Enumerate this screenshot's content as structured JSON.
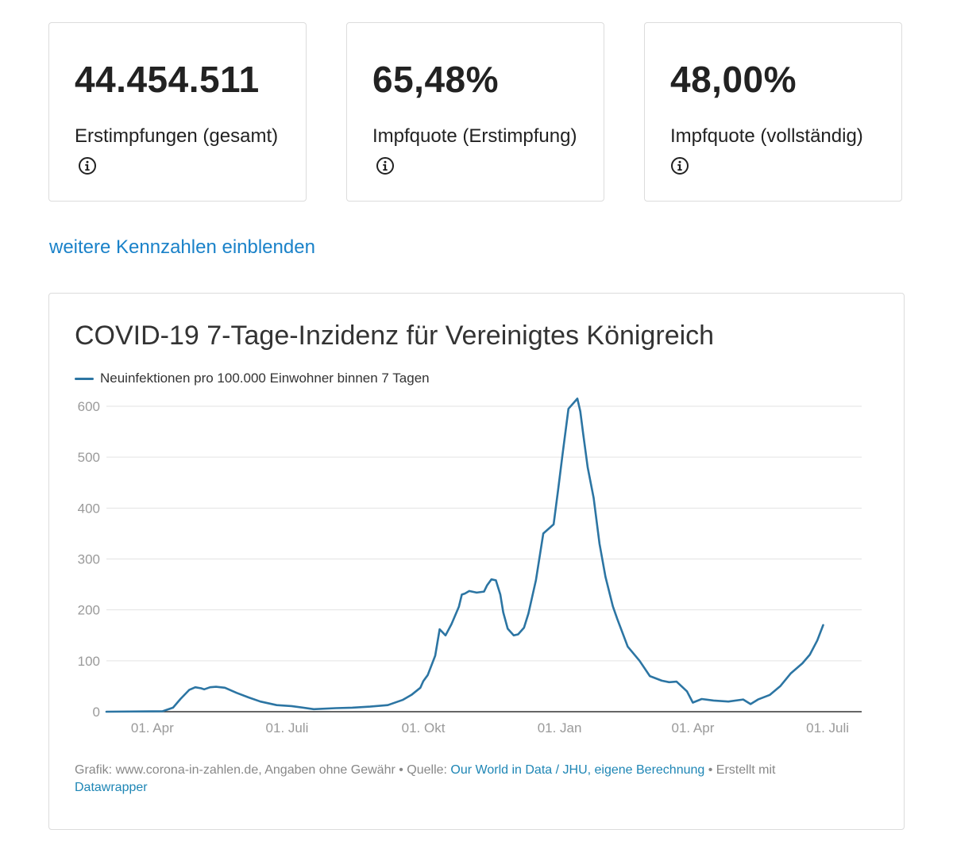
{
  "cards": [
    {
      "value": "44.454.511",
      "label": "Erstimpfungen (gesamt)"
    },
    {
      "value": "65,48%",
      "label": "Impfquote (Erstimpfung)"
    },
    {
      "value": "48,00%",
      "label": "Impfquote (vollständig)"
    }
  ],
  "more_link": "weitere Kennzahlen einblenden",
  "footer": {
    "prefix": "Grafik: www.corona-in-zahlen.de, Angaben ohne Gewähr • Quelle: ",
    "source_link": "Our World in Data / JHU, eigene Berechnung",
    "middle": " • Erstellt mit ",
    "tool_link": "Datawrapper"
  },
  "colors": {
    "line": "#2c75a3",
    "link": "#1a82c9",
    "grid": "#e3e3e3"
  },
  "chart_data": {
    "type": "line",
    "title": "COVID-19 7-Tage-Inzidenz für Vereinigtes Königreich",
    "legend": "Neuinfektionen pro 100.000 Einwohner binnen 7 Tagen",
    "xlabel": "",
    "ylabel": "",
    "ylim": [
      0,
      600
    ],
    "y_ticks": [
      0,
      100,
      200,
      300,
      400,
      500,
      600
    ],
    "x_ticks": [
      "01. Apr",
      "01. Juli",
      "01. Okt",
      "01. Jan",
      "01. Apr",
      "01. Juli"
    ],
    "x_tick_days": [
      31,
      122,
      214,
      306,
      396,
      487
    ],
    "x_unit": "days since 01. Mar 2020",
    "series": [
      {
        "name": "Neuinfektionen pro 100.000 Einwohner binnen 7 Tagen",
        "x": [
          0,
          38,
          45,
          50,
          56,
          60,
          64,
          66,
          70,
          74,
          80,
          88,
          96,
          104,
          115,
          125,
          140,
          155,
          166,
          178,
          190,
          200,
          206,
          212,
          214,
          217,
          222,
          225,
          229,
          233,
          238,
          240,
          242,
          245,
          250,
          255,
          257,
          260,
          263,
          266,
          268,
          271,
          275,
          278,
          282,
          285,
          290,
          295,
          302,
          305,
          308,
          312,
          318,
          320,
          322,
          325,
          329,
          333,
          337,
          342,
          345,
          352,
          360,
          367,
          375,
          380,
          385,
          392,
          396,
          402,
          410,
          420,
          430,
          435,
          440,
          448,
          455,
          462,
          470,
          475,
          480,
          484
        ],
        "values": [
          0,
          1,
          8,
          25,
          43,
          48,
          46,
          44,
          48,
          49,
          47,
          37,
          28,
          20,
          13,
          11,
          5,
          7,
          8,
          10,
          13,
          23,
          33,
          47,
          60,
          72,
          110,
          162,
          150,
          172,
          206,
          230,
          232,
          237,
          234,
          236,
          248,
          260,
          258,
          230,
          195,
          163,
          150,
          152,
          165,
          193,
          258,
          350,
          368,
          435,
          505,
          595,
          615,
          590,
          545,
          480,
          420,
          330,
          265,
          207,
          182,
          128,
          100,
          70,
          61,
          58,
          59,
          40,
          18,
          25,
          22,
          20,
          24,
          15,
          24,
          33,
          50,
          75,
          95,
          112,
          140,
          170
        ]
      }
    ]
  }
}
